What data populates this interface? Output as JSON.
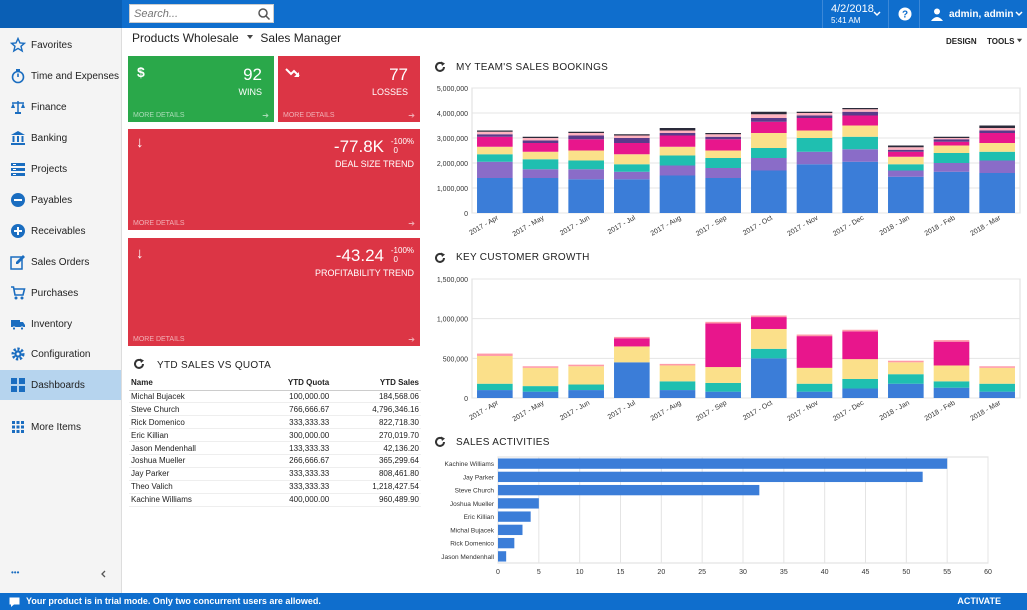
{
  "topbar": {
    "search_placeholder": "Search...",
    "date": "4/2/2018",
    "time": "5:41 AM",
    "user": "admin, admin"
  },
  "sidebar": {
    "items": [
      {
        "label": "Favorites",
        "icon": "star-icon"
      },
      {
        "label": "Time and Expenses",
        "icon": "stopwatch-icon"
      },
      {
        "label": "Finance",
        "icon": "scales-icon"
      },
      {
        "label": "Banking",
        "icon": "bank-icon"
      },
      {
        "label": "Projects",
        "icon": "projects-icon"
      },
      {
        "label": "Payables",
        "icon": "minus-circle-icon"
      },
      {
        "label": "Receivables",
        "icon": "plus-circle-icon"
      },
      {
        "label": "Sales Orders",
        "icon": "edit-icon"
      },
      {
        "label": "Purchases",
        "icon": "cart-icon"
      },
      {
        "label": "Inventory",
        "icon": "truck-icon"
      },
      {
        "label": "Configuration",
        "icon": "gear-icon"
      },
      {
        "label": "Dashboards",
        "icon": "dashboard-icon"
      },
      {
        "label": "More Items",
        "icon": "grid-icon"
      }
    ],
    "footer_dots": "•••"
  },
  "header": {
    "company": "Products Wholesale",
    "page": "Sales Manager",
    "design": "DESIGN",
    "tools": "TOOLS"
  },
  "tiles": {
    "wins": {
      "symbol": "$",
      "value": "92",
      "label": "WINS",
      "more": "MORE DETAILS",
      "color": "#2aa84a"
    },
    "losses": {
      "value": "77",
      "label": "LOSSES",
      "more": "MORE DETAILS",
      "color": "#dc3545"
    },
    "deal": {
      "value": "-77.8K",
      "pct": "-100%",
      "pct2": "0",
      "label": "DEAL SIZE TREND",
      "more": "MORE DETAILS"
    },
    "profit": {
      "value": "-43.24",
      "pct": "-100%",
      "pct2": "0",
      "label": "PROFITABILITY TREND",
      "more": "MORE DETAILS"
    }
  },
  "quota": {
    "title": "YTD SALES VS QUOTA",
    "headers": [
      "Name",
      "YTD Quota",
      "YTD Sales"
    ],
    "rows": [
      [
        "Michal Bujacek",
        "100,000.00",
        "184,568.06"
      ],
      [
        "Steve Church",
        "766,666.67",
        "4,796,346.16"
      ],
      [
        "Rick Domenico",
        "333,333.33",
        "822,718.30"
      ],
      [
        "Eric Killian",
        "300,000.00",
        "270,019.70"
      ],
      [
        "Jason Mendenhall",
        "133,333.33",
        "42,136.20"
      ],
      [
        "Joshua Mueller",
        "266,666.67",
        "365,299.64"
      ],
      [
        "Jay Parker",
        "333,333.33",
        "808,461.80"
      ],
      [
        "Theo Valich",
        "333,333.33",
        "1,218,427.54"
      ],
      [
        "Kachine Williams",
        "400,000.00",
        "960,489.90"
      ]
    ]
  },
  "chart_data": [
    {
      "type": "bar",
      "stacked": true,
      "title": "MY TEAM'S SALES BOOKINGS",
      "categories": [
        "2017 - Apr",
        "2017 - May",
        "2017 - Jun",
        "2017 - Jul",
        "2017 - Aug",
        "2017 - Sep",
        "2017 - Oct",
        "2017 - Nov",
        "2017 - Dec",
        "2018 - Jan",
        "2018 - Feb",
        "2018 - Mar"
      ],
      "ylim": [
        0,
        5000000
      ],
      "yticks": [
        "0",
        "1,000,000",
        "2,000,000",
        "3,000,000",
        "4,000,000",
        "5,000,000"
      ],
      "colors": [
        "#3b7dd8",
        "#8a6cc8",
        "#1fbfb0",
        "#fbe08a",
        "#e8168c",
        "#5a3a8a",
        "#ffb3c0",
        "#2a2a3a"
      ],
      "segments": [
        [
          1400000,
          1400000,
          1350000,
          1350000,
          1500000,
          1400000,
          1700000,
          1950000,
          2050000,
          1450000,
          1650000,
          1600000
        ],
        [
          650000,
          350000,
          400000,
          300000,
          400000,
          400000,
          500000,
          500000,
          500000,
          250000,
          350000,
          500000
        ],
        [
          300000,
          400000,
          350000,
          300000,
          400000,
          400000,
          400000,
          550000,
          500000,
          250000,
          400000,
          350000
        ],
        [
          300000,
          300000,
          400000,
          400000,
          350000,
          300000,
          600000,
          300000,
          450000,
          300000,
          300000,
          350000
        ],
        [
          400000,
          350000,
          450000,
          450000,
          450000,
          450000,
          450000,
          500000,
          400000,
          200000,
          150000,
          400000
        ],
        [
          100000,
          100000,
          150000,
          200000,
          100000,
          100000,
          150000,
          100000,
          150000,
          80000,
          100000,
          100000
        ],
        [
          100000,
          100000,
          100000,
          100000,
          100000,
          100000,
          150000,
          100000,
          100000,
          100000,
          50000,
          100000
        ],
        [
          50000,
          50000,
          50000,
          50000,
          100000,
          50000,
          100000,
          50000,
          50000,
          70000,
          50000,
          100000
        ]
      ]
    },
    {
      "type": "bar",
      "stacked": true,
      "title": "KEY CUSTOMER GROWTH",
      "categories": [
        "2017 - Apr",
        "2017 - May",
        "2017 - Jun",
        "2017 - Jul",
        "2017 - Aug",
        "2017 - Sep",
        "2017 - Oct",
        "2017 - Nov",
        "2017 - Dec",
        "2018 - Jan",
        "2018 - Feb",
        "2018 - Mar"
      ],
      "ylim": [
        0,
        1500000
      ],
      "yticks": [
        "0",
        "500,000",
        "1,000,000",
        "1,500,000"
      ],
      "colors": [
        "#3b7dd8",
        "#1fbfb0",
        "#fbe08a",
        "#e8168c",
        "#ff9aa8"
      ],
      "segments": [
        [
          100000,
          80000,
          100000,
          450000,
          100000,
          80000,
          500000,
          80000,
          120000,
          180000,
          130000,
          80000
        ],
        [
          80000,
          70000,
          70000,
          0,
          110000,
          110000,
          120000,
          100000,
          120000,
          120000,
          80000,
          100000
        ],
        [
          350000,
          230000,
          230000,
          200000,
          200000,
          200000,
          250000,
          200000,
          250000,
          150000,
          200000,
          200000
        ],
        [
          0,
          0,
          0,
          100000,
          0,
          550000,
          150000,
          400000,
          350000,
          0,
          300000,
          0
        ],
        [
          30000,
          20000,
          20000,
          20000,
          20000,
          20000,
          20000,
          20000,
          20000,
          20000,
          20000,
          20000
        ]
      ]
    },
    {
      "type": "bar",
      "orientation": "horizontal",
      "title": "SALES ACTIVITIES",
      "categories": [
        "Kachine Williams",
        "Jay Parker",
        "Steve Church",
        "Joshua Mueller",
        "Eric Killian",
        "Michal Bujacek",
        "Rick Domenico",
        "Jason Mendenhall"
      ],
      "values": [
        55,
        52,
        32,
        5,
        4,
        3,
        2,
        1
      ],
      "xlim": [
        0,
        60
      ],
      "xticks": [
        "0",
        "5",
        "10",
        "15",
        "20",
        "25",
        "30",
        "35",
        "40",
        "45",
        "50",
        "55",
        "60"
      ],
      "color": "#3b7dd8"
    }
  ],
  "trial": {
    "message": "Your product is in trial mode. Only two concurrent users are allowed.",
    "activate": "ACTIVATE"
  }
}
